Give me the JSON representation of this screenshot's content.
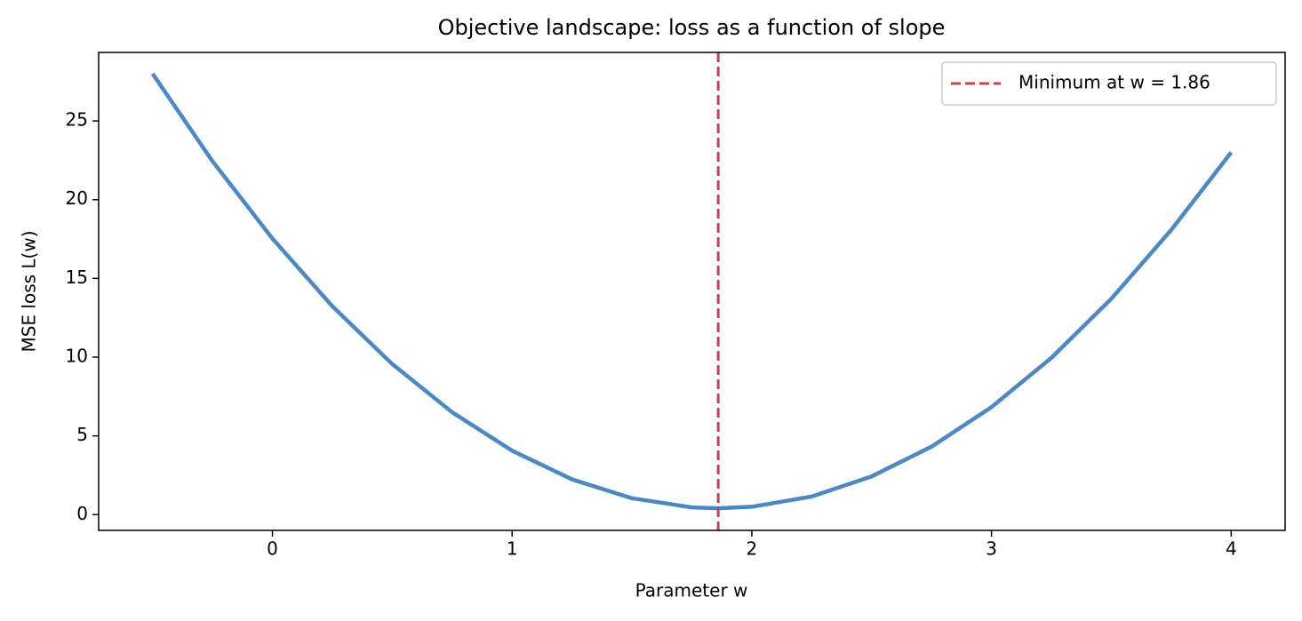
{
  "chart_data": {
    "type": "line",
    "title": "Objective landscape: loss as a function of slope",
    "xlabel": "Parameter w",
    "ylabel": "MSE loss L(w)",
    "x": [
      -0.5,
      -0.25,
      0,
      0.25,
      0.5,
      0.75,
      1,
      1.25,
      1.5,
      1.75,
      1.86,
      2,
      2.25,
      2.5,
      2.75,
      3,
      3.25,
      3.5,
      3.75,
      4
    ],
    "series": [
      {
        "color": "#4c89c4",
        "values": [
          28.0,
          22.44,
          17.53,
          13.23,
          9.56,
          6.5,
          4.06,
          2.24,
          1.04,
          0.46,
          0.4,
          0.5,
          1.15,
          2.43,
          4.32,
          6.83,
          9.96,
          13.71,
          18.08,
          23.0
        ]
      }
    ],
    "vline": {
      "x": 1.86,
      "name": "Minimum at w = 1.86",
      "color": "#c0474a"
    },
    "xlim": [
      -0.725,
      4.225
    ],
    "ylim": [
      -1.0,
      29.35
    ],
    "xticks": [
      0,
      1,
      2,
      3,
      4
    ],
    "yticks": [
      0,
      5,
      10,
      15,
      20,
      25
    ],
    "grid": false,
    "legend": "upper right"
  }
}
